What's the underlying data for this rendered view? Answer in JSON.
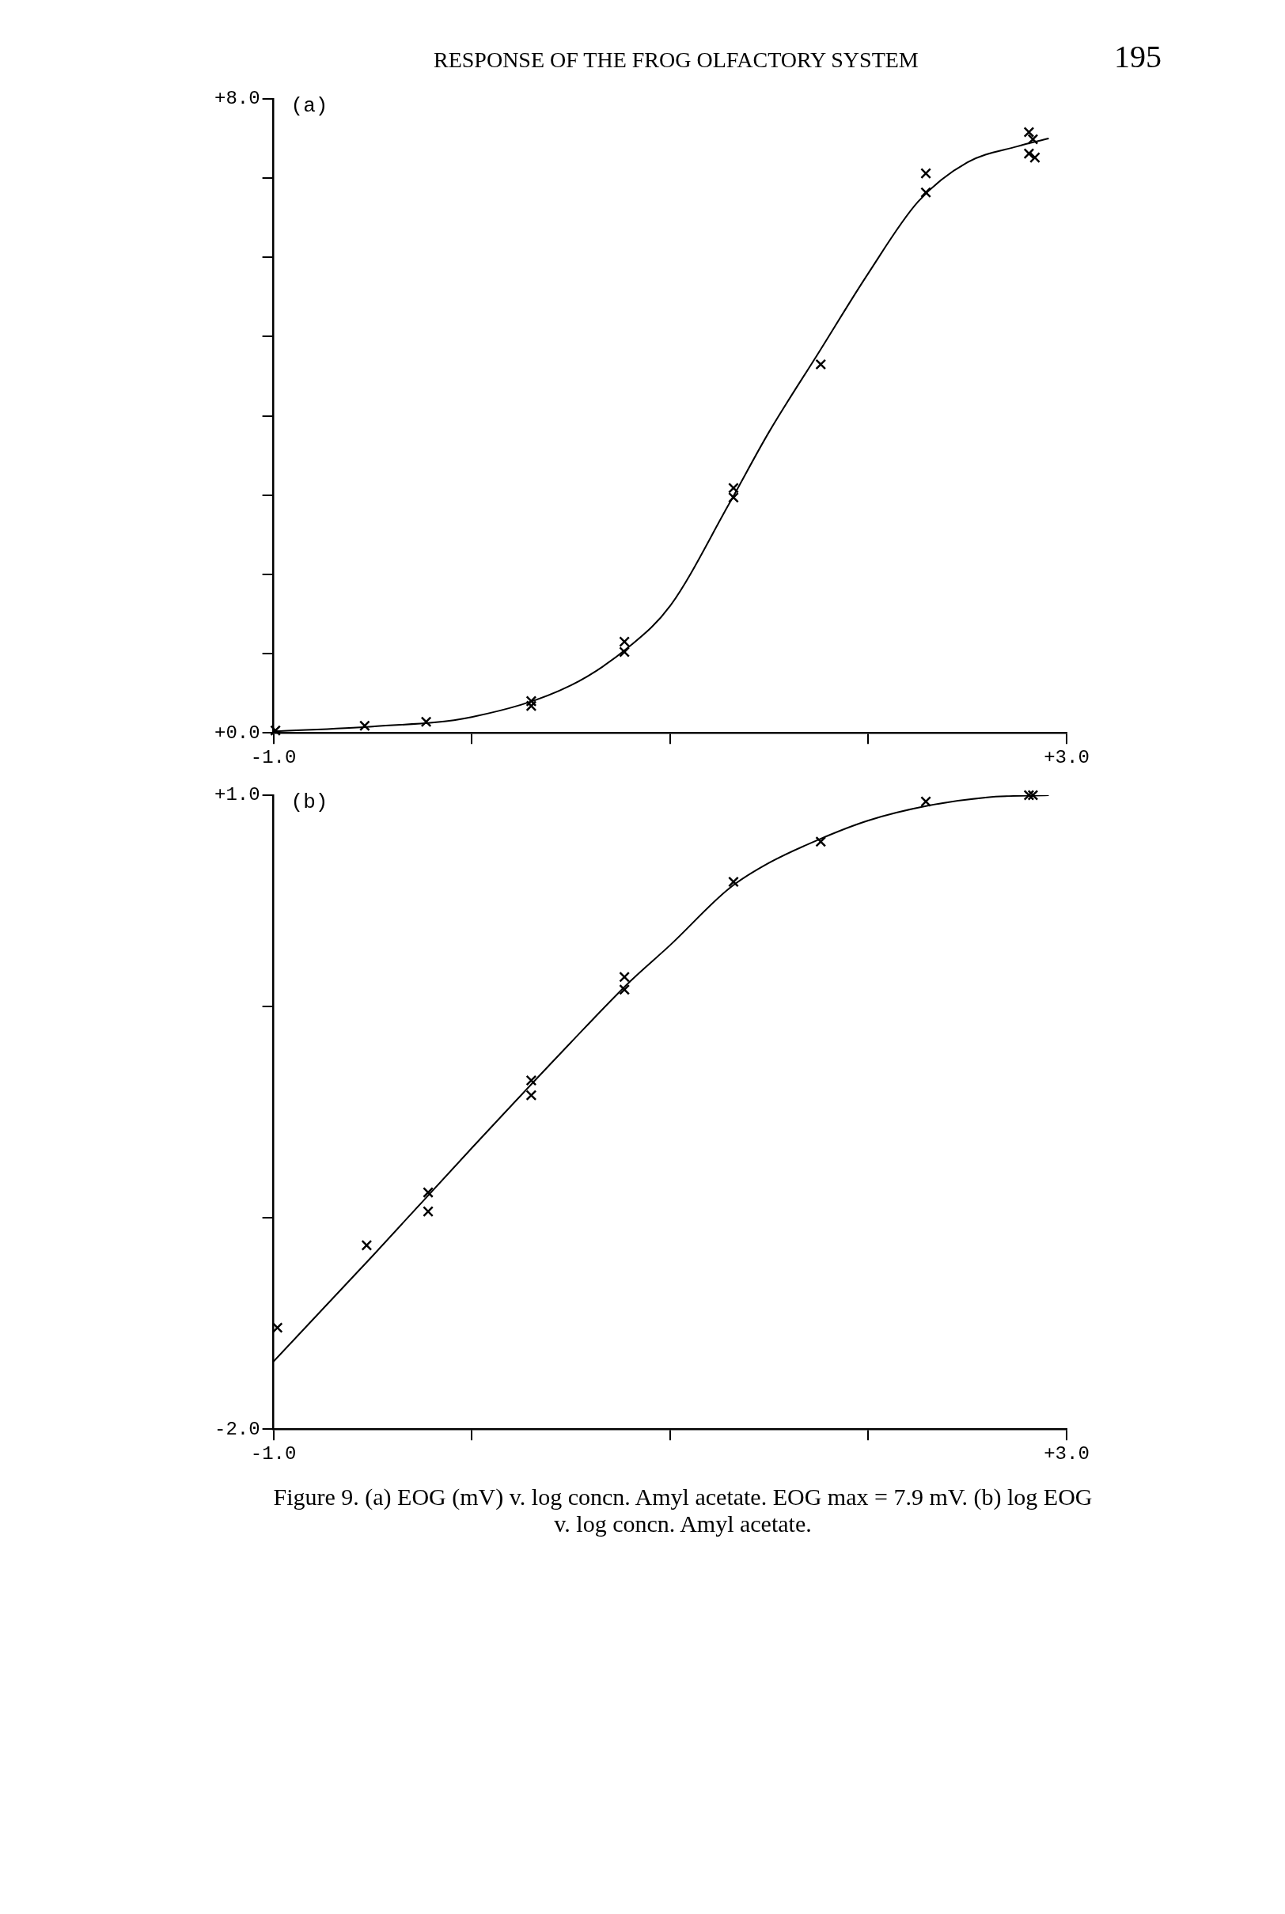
{
  "chart_data": [
    {
      "type": "scatter",
      "title": "RESPONSE OF THE FROG OLFACTORY SYSTEM",
      "subtitle": "(a)",
      "annotations": [
        "195"
      ],
      "xlim": [
        -1,
        3
      ],
      "xticks": [
        {
          "value": -1,
          "label": "-1.0"
        },
        {
          "value": 0,
          "label": null
        },
        {
          "value": 1,
          "label": null
        },
        {
          "value": 2,
          "label": null
        },
        {
          "value": 3,
          "label": "+3.0"
        }
      ],
      "ylim": [
        0,
        8
      ],
      "yticks": [
        {
          "value": 0,
          "label": "+0.0"
        },
        {
          "value": 1,
          "label": null
        },
        {
          "value": 2,
          "label": null
        },
        {
          "value": 3,
          "label": null
        },
        {
          "value": 4,
          "label": null
        },
        {
          "value": 5,
          "label": null
        },
        {
          "value": 6,
          "label": null
        },
        {
          "value": 7,
          "label": null
        },
        {
          "value": 8,
          "label": "+8.0"
        }
      ],
      "series": [
        {
          "color": "#000000",
          "marker": "cross",
          "x": [
            -0.99,
            -0.54,
            -0.23,
            0.3,
            0.3,
            0.77,
            0.77,
            1.32,
            1.32,
            1.76,
            2.29,
            2.29,
            2.81,
            2.83,
            2.81,
            2.84
          ],
          "values": [
            0.03,
            0.09,
            0.14,
            0.4,
            0.34,
            1.15,
            1.02,
            3.09,
            2.97,
            4.65,
            7.06,
            6.82,
            7.58,
            7.49,
            7.31,
            7.26
          ]
        },
        {
          "type": "line",
          "color": "#000000",
          "x": [
            -1,
            -0.5,
            0,
            0.5,
            0.8,
            1.0,
            1.3,
            1.5,
            1.75,
            2.0,
            2.25,
            2.5,
            2.75,
            2.91
          ],
          "values": [
            0.02,
            0.08,
            0.2,
            0.6,
            1.1,
            1.6,
            2.9,
            3.8,
            4.8,
            5.8,
            6.7,
            7.2,
            7.4,
            7.5
          ]
        }
      ]
    },
    {
      "type": "scatter",
      "subtitle": "(b)",
      "annotations": [
        "Figure 9. (a) EOG (mV) v. log concn. Amyl acetate. EOG max = 7.9 mV. (b) log EOG v. log concn. Amyl acetate."
      ],
      "xlim": [
        -1,
        3
      ],
      "xticks": [
        {
          "value": -1,
          "label": "-1.0"
        },
        {
          "value": 0,
          "label": null
        },
        {
          "value": 1,
          "label": null
        },
        {
          "value": 2,
          "label": null
        },
        {
          "value": 3,
          "label": "+3.0"
        }
      ],
      "ylim": [
        -2,
        1
      ],
      "yticks": [
        {
          "value": -2,
          "label": "-2.0"
        },
        {
          "value": -1,
          "label": null
        },
        {
          "value": 0,
          "label": null
        },
        {
          "value": 1,
          "label": "+1.0"
        }
      ],
      "series": [
        {
          "color": "#000000",
          "marker": "cross",
          "x": [
            -0.98,
            -0.53,
            -0.22,
            -0.22,
            0.3,
            0.3,
            0.77,
            0.77,
            1.32,
            1.76,
            2.29,
            2.81,
            2.83
          ],
          "values": [
            -1.52,
            -1.13,
            -0.88,
            -0.97,
            -0.35,
            -0.42,
            0.14,
            0.08,
            0.59,
            0.78,
            0.97,
            1.0,
            1.0
          ]
        },
        {
          "type": "line",
          "color": "#000000",
          "x": [
            -1,
            -0.5,
            0,
            0.5,
            0.8,
            1.0,
            1.3,
            1.5,
            1.75,
            2.0,
            2.3,
            2.6,
            2.91
          ],
          "values": [
            -1.68,
            -1.18,
            -0.67,
            -0.17,
            0.12,
            0.29,
            0.56,
            0.68,
            0.79,
            0.88,
            0.95,
            0.99,
            1.0
          ]
        }
      ]
    }
  ]
}
